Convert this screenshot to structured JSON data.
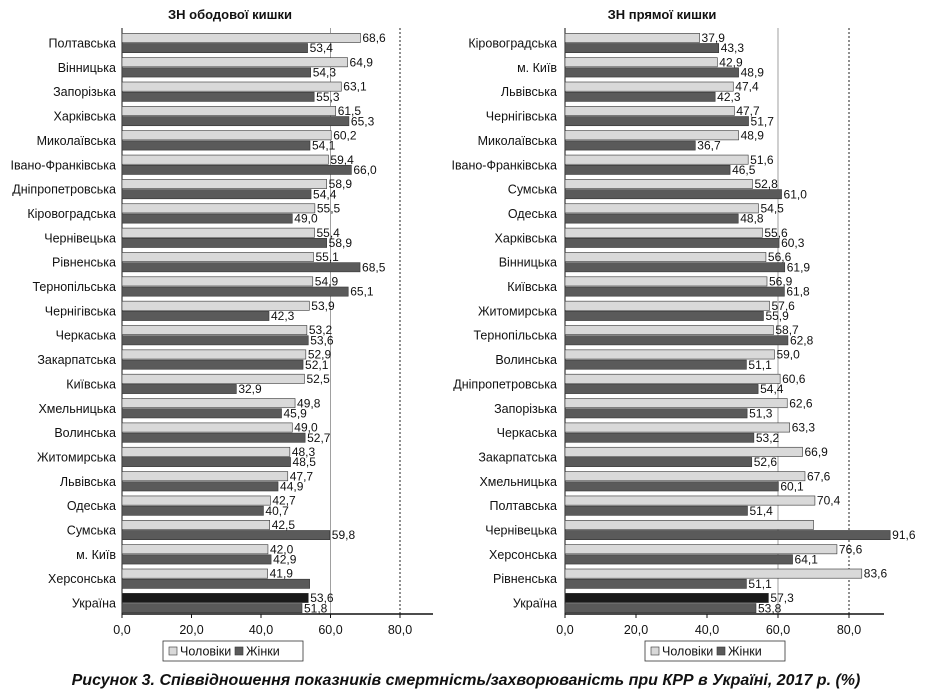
{
  "figure": {
    "caption": "Рисунок 3. Співвідношення показників смертність/захворюваність при КРР в Україні, 2017 р. (%)"
  },
  "chart_data": [
    {
      "type": "bar",
      "orientation": "horizontal",
      "title": "ЗН ободової кишки",
      "categories": [
        "Полтавська",
        "Вінницька",
        "Запорізька",
        "Харківська",
        "Миколаївська",
        "Івано-Франківська",
        "Дніпропетровська",
        "Кіровоградська",
        "Чернівецька",
        "Рівненська",
        "Тернопільська",
        "Чернігівська",
        "Черкаська",
        "Закарпатська",
        "Київська",
        "Хмельницька",
        "Волинська",
        "Житомирська",
        "Львівська",
        "Одеська",
        "Сумська",
        "м. Київ",
        "Херсонська",
        "Україна"
      ],
      "series": [
        {
          "name": "Чоловіки",
          "color": "#d9d9d9",
          "highlight_color": "#1a1a1a",
          "values": [
            68.6,
            64.9,
            63.1,
            61.5,
            60.2,
            59.4,
            58.9,
            55.5,
            55.4,
            55.1,
            54.9,
            53.9,
            53.2,
            52.9,
            52.5,
            49.8,
            49.0,
            48.3,
            47.7,
            42.7,
            42.5,
            42.0,
            41.9,
            53.6
          ]
        },
        {
          "name": "Жінки",
          "color": "#5a5a5a",
          "highlight_color": "#5a5a5a",
          "values": [
            53.4,
            54.3,
            55.3,
            65.3,
            54.1,
            66.0,
            54.4,
            49.0,
            58.9,
            68.5,
            65.1,
            42.3,
            53.6,
            52.1,
            32.9,
            45.9,
            52.7,
            48.5,
            44.9,
            40.7,
            59.8,
            42.9,
            54.0,
            51.8
          ]
        }
      ],
      "value_labels": {
        "Чоловіки": [
          "68,6",
          "64,9",
          "63,1",
          "61,5",
          "60,2",
          "59,4",
          "58,9",
          "55,5",
          "55,4",
          "55,1",
          "54,9",
          "53,9",
          "53,2",
          "52,9",
          "52,5",
          "49,8",
          "49,0",
          "48,3",
          "47,7",
          "42,7",
          "42,5",
          "42,0",
          "41,9",
          "53,6"
        ],
        "Жінки": [
          "53,4",
          "54,3",
          "55,3",
          "65,3",
          "54,1",
          "66,0",
          "54,4",
          "49,0",
          "58,9",
          "68,5",
          "65,1",
          "42,3",
          "53,6",
          "52,1",
          "32,9",
          "45,9",
          "52,7",
          "48,5",
          "44,9",
          "40,7",
          "59,8",
          "42,9",
          "",
          "51,8"
        ]
      },
      "highlight_category": "Україна",
      "xlim": [
        0,
        90
      ],
      "xticks": [
        "0,0",
        "20,0",
        "40,0",
        "60,0",
        "80,0"
      ],
      "xtick_values": [
        0,
        20,
        40,
        60,
        80
      ],
      "reference_lines": [
        60,
        80
      ],
      "grid": false,
      "legend": {
        "placement": "bottom",
        "items": [
          "Чоловіки",
          "Жінки"
        ]
      }
    },
    {
      "type": "bar",
      "orientation": "horizontal",
      "title": "ЗН прямої кишки",
      "categories": [
        "Кіровоградська",
        "м. Київ",
        "Львівська",
        "Чернігівська",
        "Миколаївська",
        "Івано-Франківська",
        "Сумська",
        "Одеська",
        "Харківська",
        "Вінницька",
        "Київська",
        "Житомирська",
        "Тернопільська",
        "Волинська",
        "Дніпропетровська",
        "Запорізька",
        "Черкаська",
        "Закарпатська",
        "Хмельницька",
        "Полтавська",
        "Чернівецька",
        "Херсонська",
        "Рівненська",
        "Україна"
      ],
      "series": [
        {
          "name": "Чоловіки",
          "color": "#d9d9d9",
          "highlight_color": "#1a1a1a",
          "values": [
            37.9,
            42.9,
            47.4,
            47.7,
            48.9,
            51.6,
            52.8,
            54.5,
            55.6,
            56.6,
            56.9,
            57.6,
            58.7,
            59.0,
            60.6,
            62.6,
            63.3,
            66.9,
            67.6,
            70.4,
            70.0,
            76.6,
            83.6,
            57.3
          ]
        },
        {
          "name": "Жінки",
          "color": "#5a5a5a",
          "highlight_color": "#5a5a5a",
          "values": [
            43.3,
            48.9,
            42.3,
            51.7,
            36.7,
            46.5,
            61.0,
            48.8,
            60.3,
            61.9,
            61.8,
            55.9,
            62.8,
            51.1,
            54.4,
            51.3,
            53.2,
            52.6,
            60.1,
            51.4,
            91.6,
            64.1,
            51.1,
            53.8
          ]
        }
      ],
      "value_labels": {
        "Чоловіки": [
          "37,9",
          "42,9",
          "47,4",
          "47,7",
          "48,9",
          "51,6",
          "52,8",
          "54,5",
          "55,6",
          "56,6",
          "56,9",
          "57,6",
          "58,7",
          "59,0",
          "60,6",
          "62,6",
          "63,3",
          "66,9",
          "67,6",
          "70,4",
          "",
          "76,6",
          "83,6",
          "57,3"
        ],
        "Жінки": [
          "43,3",
          "48,9",
          "42,3",
          "51,7",
          "36,7",
          "46,5",
          "61,0",
          "48,8",
          "60,3",
          "61,9",
          "61,8",
          "55,9",
          "62,8",
          "51,1",
          "54,4",
          "51,3",
          "53,2",
          "52,6",
          "60,1",
          "51,4",
          "91,6",
          "64,1",
          "51,1",
          "53,8"
        ]
      },
      "highlight_category": "Україна",
      "xlim": [
        0,
        90
      ],
      "xticks": [
        "0,0",
        "20,0",
        "40,0",
        "60,0",
        "80,0"
      ],
      "xtick_values": [
        0,
        20,
        40,
        60,
        80
      ],
      "reference_lines": [
        60,
        80
      ],
      "grid": false,
      "legend": {
        "placement": "bottom",
        "items": [
          "Чоловіки",
          "Жінки"
        ]
      }
    }
  ]
}
